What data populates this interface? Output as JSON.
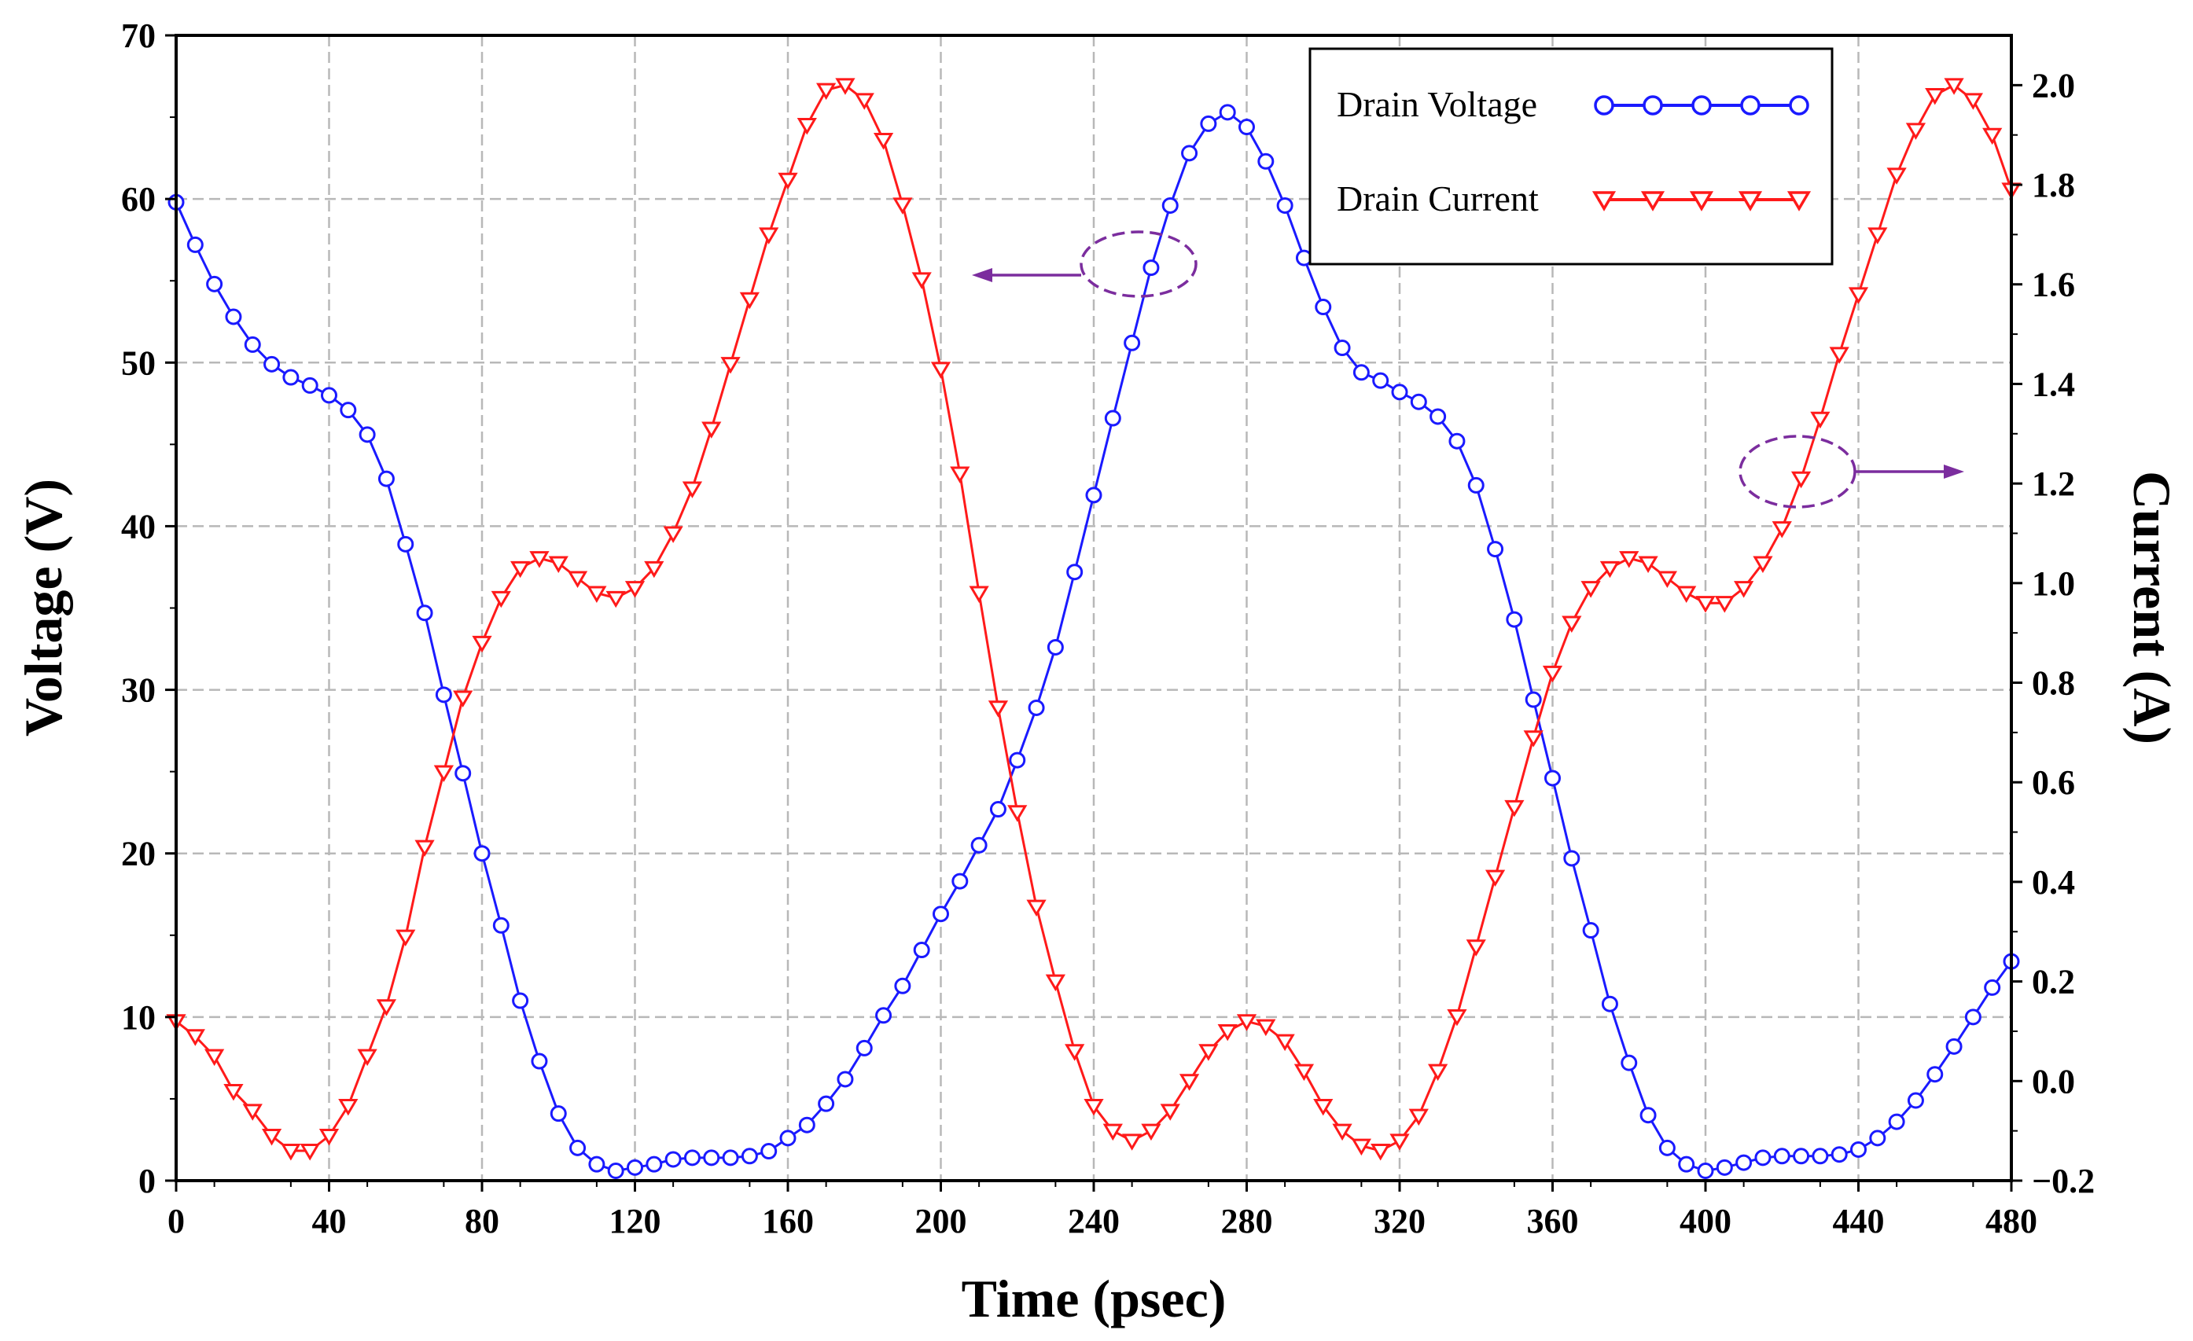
{
  "colors": {
    "voltage": "#1a1aff",
    "current": "#ff1a1a",
    "annotation": "#7b2d9e"
  },
  "chart_data": {
    "type": "line",
    "title": "",
    "xlabel": "Time (psec)",
    "ylabel": "Voltage (V)",
    "y2label": "Current (A)",
    "xlim": [
      0,
      480
    ],
    "ylim": [
      0,
      70
    ],
    "y2lim": [
      -0.2,
      2.1
    ],
    "xticks": [
      0,
      40,
      80,
      120,
      160,
      200,
      240,
      280,
      320,
      360,
      400,
      440,
      480
    ],
    "yticks": [
      0,
      10,
      20,
      30,
      40,
      50,
      60,
      70
    ],
    "y2ticks": [
      "-0.2",
      "0.0",
      "0.2",
      "0.4",
      "0.6",
      "0.8",
      "1.0",
      "1.2",
      "1.4",
      "1.6",
      "1.8",
      "2.0"
    ],
    "grid": true,
    "legend_position": "top-right",
    "series": [
      {
        "name": "Drain Voltage",
        "axis": "left",
        "marker": "circle",
        "x": [
          0,
          5,
          10,
          15,
          20,
          25,
          30,
          35,
          40,
          45,
          50,
          55,
          60,
          65,
          70,
          75,
          80,
          85,
          90,
          95,
          100,
          105,
          110,
          115,
          120,
          125,
          130,
          135,
          140,
          145,
          150,
          155,
          160,
          165,
          170,
          175,
          180,
          185,
          190,
          195,
          200,
          205,
          210,
          215,
          220,
          225,
          230,
          235,
          240,
          245,
          250,
          255,
          260,
          265,
          270,
          275,
          280,
          285,
          290,
          295,
          300,
          305,
          310,
          315,
          320,
          325,
          330,
          335,
          340,
          345,
          350,
          355,
          360,
          365,
          370,
          375,
          380,
          385,
          390,
          395,
          400,
          405,
          410,
          415,
          420,
          425,
          430,
          435,
          440,
          445,
          450,
          455,
          460,
          465,
          470,
          475,
          480
        ],
        "y": [
          59.8,
          57.2,
          54.8,
          52.8,
          51.1,
          49.9,
          49.1,
          48.6,
          48.0,
          47.1,
          45.6,
          42.9,
          38.9,
          34.7,
          29.7,
          24.9,
          20.0,
          15.6,
          11.0,
          7.3,
          4.1,
          2.0,
          1.0,
          0.6,
          0.8,
          1.0,
          1.3,
          1.4,
          1.4,
          1.4,
          1.5,
          1.8,
          2.6,
          3.4,
          4.7,
          6.2,
          8.1,
          10.1,
          11.9,
          14.1,
          16.3,
          18.3,
          20.5,
          22.7,
          25.7,
          28.9,
          32.6,
          37.2,
          41.9,
          46.6,
          51.2,
          55.8,
          59.6,
          62.8,
          64.6,
          65.3,
          64.4,
          62.3,
          59.6,
          56.4,
          53.4,
          50.9,
          49.4,
          48.9,
          48.2,
          47.6,
          46.7,
          45.2,
          42.5,
          38.6,
          34.3,
          29.4,
          24.6,
          19.7,
          15.3,
          10.8,
          7.2,
          4.0,
          2.0,
          1.0,
          0.6,
          0.8,
          1.1,
          1.4,
          1.5,
          1.5,
          1.5,
          1.6,
          1.9,
          2.6,
          3.6,
          4.9,
          6.5,
          8.2,
          10.0,
          11.8,
          13.4
        ]
      },
      {
        "name": "Drain Current",
        "axis": "right",
        "marker": "triangle-down",
        "x": [
          0,
          5,
          10,
          15,
          20,
          25,
          30,
          35,
          40,
          45,
          50,
          55,
          60,
          65,
          70,
          75,
          80,
          85,
          90,
          95,
          100,
          105,
          110,
          115,
          120,
          125,
          130,
          135,
          140,
          145,
          150,
          155,
          160,
          165,
          170,
          175,
          180,
          185,
          190,
          195,
          200,
          205,
          210,
          215,
          220,
          225,
          230,
          235,
          240,
          245,
          250,
          255,
          260,
          265,
          270,
          275,
          280,
          285,
          290,
          295,
          300,
          305,
          310,
          315,
          320,
          325,
          330,
          335,
          340,
          345,
          350,
          355,
          360,
          365,
          370,
          375,
          380,
          385,
          390,
          395,
          400,
          405,
          410,
          415,
          420,
          425,
          430,
          435,
          440,
          445,
          450,
          455,
          460,
          465,
          470,
          475,
          480
        ],
        "y": [
          0.12,
          0.09,
          0.05,
          -0.02,
          -0.06,
          -0.11,
          -0.14,
          -0.14,
          -0.11,
          -0.05,
          0.05,
          0.15,
          0.29,
          0.47,
          0.62,
          0.77,
          0.88,
          0.97,
          1.03,
          1.05,
          1.04,
          1.01,
          0.98,
          0.97,
          0.99,
          1.03,
          1.1,
          1.19,
          1.31,
          1.44,
          1.57,
          1.7,
          1.81,
          1.92,
          1.99,
          2.0,
          1.97,
          1.89,
          1.76,
          1.61,
          1.43,
          1.22,
          0.98,
          0.75,
          0.54,
          0.35,
          0.2,
          0.06,
          -0.05,
          -0.1,
          -0.12,
          -0.1,
          -0.06,
          0.0,
          0.06,
          0.1,
          0.12,
          0.11,
          0.08,
          0.02,
          -0.05,
          -0.1,
          -0.13,
          -0.14,
          -0.12,
          -0.07,
          0.02,
          0.13,
          0.27,
          0.41,
          0.55,
          0.69,
          0.82,
          0.92,
          0.99,
          1.03,
          1.05,
          1.04,
          1.01,
          0.98,
          0.96,
          0.96,
          0.99,
          1.04,
          1.11,
          1.21,
          1.33,
          1.46,
          1.58,
          1.7,
          1.82,
          1.91,
          1.98,
          2.0,
          1.97,
          1.9,
          1.79
        ]
      }
    ]
  }
}
